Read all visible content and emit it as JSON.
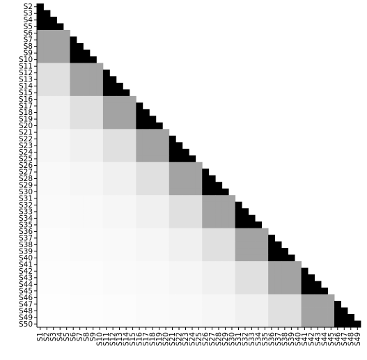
{
  "chart_data": {
    "type": "heatmap",
    "title": "",
    "xlabel": "",
    "ylabel": "",
    "labels": [
      "S1",
      "S2",
      "S3",
      "S4",
      "S5",
      "S6",
      "S7",
      "S8",
      "S9",
      "S10",
      "S11",
      "S12",
      "S13",
      "S14",
      "S15",
      "S16",
      "S17",
      "S18",
      "S19",
      "S20",
      "S21",
      "S22",
      "S23",
      "S24",
      "S25",
      "S26",
      "S27",
      "S28",
      "S29",
      "S30",
      "S31",
      "S32",
      "S33",
      "S34",
      "S35",
      "S36",
      "S37",
      "S38",
      "S39",
      "S40",
      "S41",
      "S42",
      "S43",
      "S44",
      "S45",
      "S46",
      "S47",
      "S48",
      "S49",
      "S50"
    ],
    "row_labels": [
      "S2",
      "S3",
      "S4",
      "S5",
      "S6",
      "S7",
      "S8",
      "S9",
      "S10",
      "S11",
      "S12",
      "S13",
      "S14",
      "S15",
      "S16",
      "S17",
      "S18",
      "S19",
      "S20",
      "S21",
      "S22",
      "S23",
      "S24",
      "S25",
      "S26",
      "S27",
      "S28",
      "S29",
      "S30",
      "S31",
      "S32",
      "S33",
      "S34",
      "S35",
      "S36",
      "S37",
      "S38",
      "S39",
      "S40",
      "S41",
      "S42",
      "S43",
      "S44",
      "S45",
      "S46",
      "S47",
      "S48",
      "S49",
      "S50"
    ],
    "col_labels": [
      "S1",
      "S2",
      "S3",
      "S4",
      "S5",
      "S6",
      "S7",
      "S8",
      "S9",
      "S10",
      "S11",
      "S12",
      "S13",
      "S14",
      "S15",
      "S16",
      "S17",
      "S18",
      "S19",
      "S20",
      "S21",
      "S22",
      "S23",
      "S24",
      "S25",
      "S26",
      "S27",
      "S28",
      "S29",
      "S30",
      "S31",
      "S32",
      "S33",
      "S34",
      "S35",
      "S36",
      "S37",
      "S38",
      "S39",
      "S40",
      "S41",
      "S42",
      "S43",
      "S44",
      "S45",
      "S46",
      "S47",
      "S48",
      "S49"
    ],
    "structure": "lower-triangular; items grouped in blocks of 5",
    "block_size": 5,
    "within_block_value": 1.0,
    "block_distance_values": [
      1.0,
      0.36,
      0.12,
      0.06,
      0.035,
      0.025,
      0.018,
      0.012,
      0.008,
      0.005
    ],
    "value_range": [
      0,
      1
    ],
    "colors": {
      "low": "#ffffff",
      "high": "#000000"
    },
    "grid": false,
    "legend": "none"
  }
}
